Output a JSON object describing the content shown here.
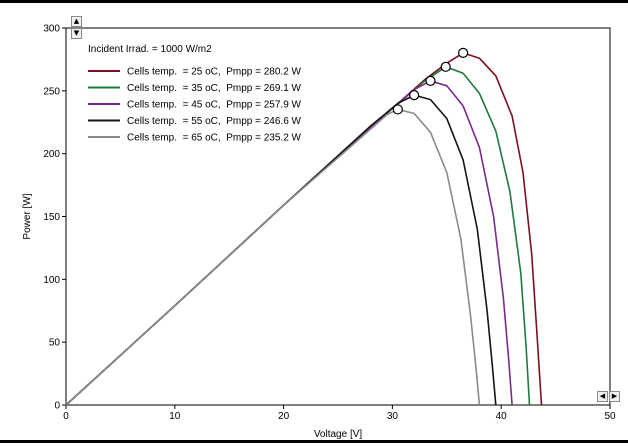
{
  "icons": {
    "scroll_up": "arrow-up-icon",
    "scroll_down": "arrow-down-icon",
    "scroll_left": "arrow-left-icon",
    "scroll_right": "arrow-right-icon"
  },
  "chart_data": {
    "type": "line",
    "title": "",
    "xlabel": "Voltage [V]",
    "ylabel": "Power [W]",
    "xlim": [
      0,
      50
    ],
    "ylim": [
      0,
      300
    ],
    "xticks": [
      0,
      10,
      20,
      30,
      40,
      50
    ],
    "yticks": [
      0,
      50,
      100,
      150,
      200,
      250,
      300
    ],
    "grid": false,
    "legend_placement": "top-left",
    "legend_title": "Incident Irrad. = 1000 W/m2",
    "series": [
      {
        "name": "Cells temp.  = 25 oC,  Pmpp = 280.2 W",
        "color": "#7a1020",
        "x": [
          0,
          10,
          20,
          30,
          33,
          35,
          36.5,
          38,
          39.5,
          41,
          42,
          42.8,
          43.3,
          43.7
        ],
        "y": [
          0,
          79,
          159,
          236,
          259,
          272,
          280.2,
          276,
          262,
          230,
          185,
          120,
          55,
          0
        ]
      },
      {
        "name": "Cells temp.  = 35 oC,  Pmpp = 269.1 W",
        "color": "#1e7a3c",
        "x": [
          0,
          10,
          20,
          30,
          33,
          34.9,
          36.5,
          38,
          39.5,
          40.8,
          41.8,
          42.3,
          42.6
        ],
        "y": [
          0,
          79,
          159,
          236,
          258,
          269.1,
          264,
          248,
          218,
          170,
          105,
          45,
          0
        ]
      },
      {
        "name": "Cells temp.  = 45 oC,  Pmpp = 257.9 W",
        "color": "#7a2a8e",
        "x": [
          0,
          10,
          20,
          30,
          32,
          33.5,
          35,
          36.5,
          38,
          39.3,
          40.2,
          40.7,
          41
        ],
        "y": [
          0,
          79,
          159,
          236,
          251,
          257.9,
          254,
          238,
          205,
          150,
          85,
          35,
          0
        ]
      },
      {
        "name": "Cells temp.  = 55 oC,  Pmpp = 246.6 W",
        "color": "#141414",
        "x": [
          0,
          10,
          20,
          28,
          30.5,
          32,
          33.5,
          35,
          36.5,
          37.8,
          38.7,
          39.2,
          39.5
        ],
        "y": [
          0,
          79,
          159,
          222,
          240,
          246.6,
          243,
          228,
          195,
          140,
          75,
          30,
          0
        ]
      },
      {
        "name": "Cells temp.  = 65 oC,  Pmpp = 235.2 W",
        "color": "#8a8a8a",
        "x": [
          0,
          10,
          20,
          27,
          29.5,
          30.5,
          32,
          33.5,
          35,
          36.3,
          37.2,
          37.7,
          38
        ],
        "y": [
          0,
          79,
          159,
          212,
          231,
          235.2,
          232,
          217,
          185,
          132,
          70,
          28,
          0
        ]
      }
    ],
    "mpp_points": [
      {
        "x": 36.5,
        "y": 280.2
      },
      {
        "x": 34.9,
        "y": 269.1
      },
      {
        "x": 33.5,
        "y": 257.9
      },
      {
        "x": 32.0,
        "y": 246.6
      },
      {
        "x": 30.5,
        "y": 235.2
      }
    ]
  }
}
